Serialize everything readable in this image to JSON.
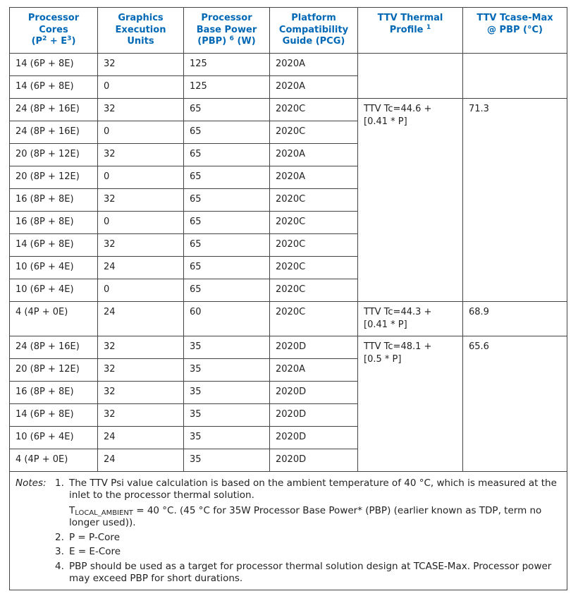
{
  "table": {
    "headers": [
      [
        {
          "text": "Processor"
        },
        {
          "text": "Cores"
        },
        {
          "text": "(P"
        },
        {
          "text": "2",
          "sup": true
        },
        {
          "text": " + E"
        },
        {
          "text": "3",
          "sup": true
        },
        {
          "text": ")"
        }
      ],
      [
        {
          "text": "Graphics"
        },
        {
          "text": "Execution"
        },
        {
          "text": "Units"
        }
      ],
      [
        {
          "text": "Processor"
        },
        {
          "text": "Base Power"
        },
        {
          "text": "(PBP) "
        },
        {
          "text": "6",
          "sup": true
        },
        {
          "text": " (W)"
        }
      ],
      [
        {
          "text": "Platform"
        },
        {
          "text": "Compatibility"
        },
        {
          "text": "Guide (PCG)"
        }
      ],
      [
        {
          "text": "TTV Thermal"
        },
        {
          "text": "Profile "
        },
        {
          "text": "1",
          "sup": true
        }
      ],
      [
        {
          "text": "TTV Tcase-Max"
        },
        {
          "text": "@ PBP (°C)"
        }
      ]
    ],
    "rows": [
      {
        "cells": [
          "14 (6P + 8E)",
          32,
          125,
          "2020A"
        ],
        "profile": null,
        "tcase": null
      },
      {
        "cells": [
          "14 (6P + 8E)",
          0,
          125,
          "2020A"
        ]
      },
      {
        "cells": [
          "24 (8P + 16E)",
          32,
          65,
          "2020C"
        ],
        "profile": "TTV Tc=44.6 +\n[0.41 * P]",
        "tcase": 71.3
      },
      {
        "cells": [
          "24 (8P + 16E)",
          0,
          65,
          "2020C"
        ]
      },
      {
        "cells": [
          "20 (8P + 12E)",
          32,
          65,
          "2020A"
        ]
      },
      {
        "cells": [
          "20 (8P + 12E)",
          0,
          65,
          "2020A"
        ]
      },
      {
        "cells": [
          "16 (8P + 8E)",
          32,
          65,
          "2020C"
        ]
      },
      {
        "cells": [
          "16 (8P + 8E)",
          0,
          65,
          "2020C"
        ]
      },
      {
        "cells": [
          "14 (6P + 8E)",
          32,
          65,
          "2020C"
        ]
      },
      {
        "cells": [
          "10 (6P + 4E)",
          24,
          65,
          "2020C"
        ]
      },
      {
        "cells": [
          "10 (6P + 4E)",
          0,
          65,
          "2020C"
        ]
      },
      {
        "cells": [
          "4 (4P + 0E)",
          24,
          60,
          "2020C"
        ],
        "profile": "TTV Tc=44.3 +\n[0.41 * P]",
        "tcase": 68.9
      },
      {
        "cells": [
          "24 (8P + 16E)",
          32,
          35,
          "2020D"
        ],
        "profile": "TTV Tc=48.1 +\n[0.5 * P]",
        "tcase": 65.6
      },
      {
        "cells": [
          "20 (8P + 12E)",
          32,
          35,
          "2020A"
        ]
      },
      {
        "cells": [
          "16 (8P + 8E)",
          32,
          35,
          "2020D"
        ]
      },
      {
        "cells": [
          "14 (6P + 8E)",
          32,
          35,
          "2020D"
        ]
      },
      {
        "cells": [
          "10 (6P + 4E)",
          24,
          35,
          "2020D"
        ]
      },
      {
        "cells": [
          "4 (4P + 0E)",
          24,
          35,
          "2020D"
        ]
      }
    ],
    "notes": {
      "label": "Notes:",
      "items": [
        {
          "number": "1.",
          "paragraphs": [
            [
              {
                "text": "The TTV Psi value calculation is based on the ambient temperature of 40 °C, which is measured at the inlet to the processor thermal solution."
              }
            ],
            [
              {
                "text": "T"
              },
              {
                "text": "LOCAL_AMBIENT",
                "sub": true
              },
              {
                "text": " = 40 °C. (45 °C for 35W Processor Base Power* (PBP) (earlier known as TDP, term no longer used))."
              }
            ]
          ]
        },
        {
          "number": "2.",
          "paragraphs": [
            [
              {
                "text": "P = P-Core"
              }
            ]
          ]
        },
        {
          "number": "3.",
          "paragraphs": [
            [
              {
                "text": "E = E-Core"
              }
            ]
          ]
        },
        {
          "number": "4.",
          "paragraphs": [
            [
              {
                "text": "PBP should be used as a target for processor thermal solution design at TCASE-Max. Processor power may exceed PBP for short durations."
              }
            ]
          ]
        }
      ]
    }
  }
}
